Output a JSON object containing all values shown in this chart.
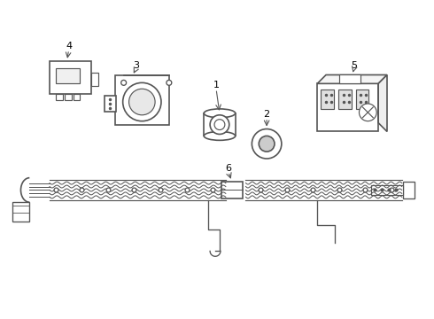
{
  "background_color": "#ffffff",
  "line_color": "#555555",
  "line_width": 1.2,
  "figsize": [
    4.9,
    3.6
  ],
  "dpi": 100
}
